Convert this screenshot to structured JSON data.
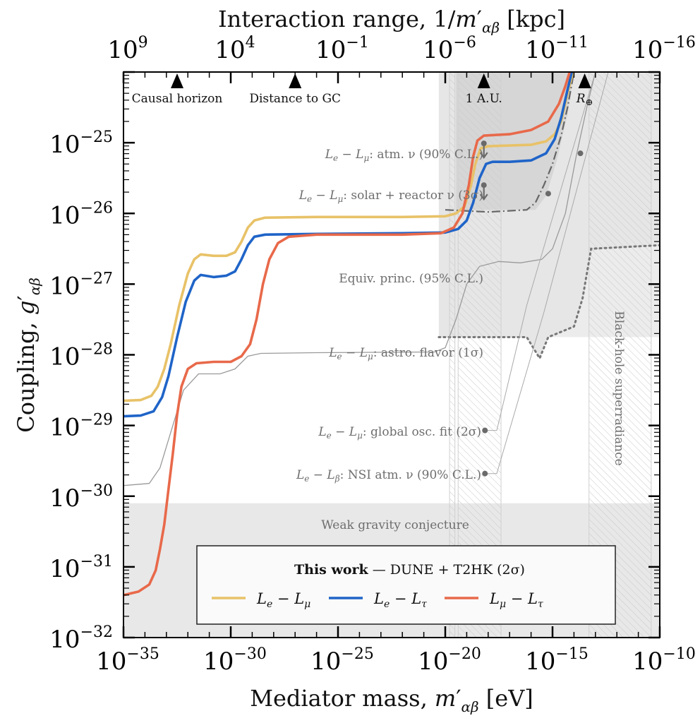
{
  "chart_data": {
    "type": "line",
    "title": "",
    "xlabel": "Mediator mass, m'_{αβ} [eV]",
    "xlabel_parts": {
      "main": "Mediator mass, ",
      "var": "m",
      "sub": "αβ",
      "unit": " [eV]"
    },
    "ylabel": "Coupling, g'_{αβ}",
    "ylabel_parts": {
      "main": "Coupling, ",
      "var": "g",
      "sub": "αβ"
    },
    "top_xlabel": "Interaction range, 1/m'_{αβ} [kpc]",
    "top_xlabel_parts": {
      "main": "Interaction range, 1/",
      "var": "m",
      "sub": "αβ",
      "unit": " [kpc]"
    },
    "xscale": "log",
    "yscale": "log",
    "xlim_log10": [
      -35,
      -10
    ],
    "ylim_log10": [
      -32,
      -24
    ],
    "x_ticks": [
      {
        "exp": "−35",
        "log": -35
      },
      {
        "exp": "−30",
        "log": -30
      },
      {
        "exp": "−25",
        "log": -25
      },
      {
        "exp": "−20",
        "log": -20
      },
      {
        "exp": "−15",
        "log": -15
      },
      {
        "exp": "−10",
        "log": -10
      }
    ],
    "y_ticks": [
      {
        "exp": "−25",
        "log": -25
      },
      {
        "exp": "−26",
        "log": -26
      },
      {
        "exp": "−27",
        "log": -27
      },
      {
        "exp": "−28",
        "log": -28
      },
      {
        "exp": "−29",
        "log": -29
      },
      {
        "exp": "−30",
        "log": -30
      },
      {
        "exp": "−31",
        "log": -31
      },
      {
        "exp": "−32",
        "log": -32
      }
    ],
    "top_x_ticks": [
      {
        "exp": "9",
        "mass_log": -35
      },
      {
        "exp": "4",
        "mass_log": -30
      },
      {
        "exp": "−1",
        "mass_log": -25
      },
      {
        "exp": "−6",
        "mass_log": -20
      },
      {
        "exp": "−11",
        "mass_log": -15
      },
      {
        "exp": "−16",
        "mass_log": -10
      }
    ],
    "distance_markers": [
      {
        "label": "Causal horizon",
        "mass_log": -32.5
      },
      {
        "label": "Distance to GC",
        "mass_log": -27.0
      },
      {
        "label": "1 A.U.",
        "mass_log": -18.2
      },
      {
        "label": "R⊕",
        "mass_log": -13.5
      }
    ],
    "series": [
      {
        "name": "Le − Lμ",
        "label_parts": {
          "a": "L",
          "asub": "e",
          "b": "L",
          "bsub": "μ"
        },
        "color": "#e8c268",
        "points_log10": [
          [
            -35,
            -28.65
          ],
          [
            -34.2,
            -28.64
          ],
          [
            -33.7,
            -28.58
          ],
          [
            -33.4,
            -28.45
          ],
          [
            -33.1,
            -28.2
          ],
          [
            -32.8,
            -27.85
          ],
          [
            -32.4,
            -27.3
          ],
          [
            -32.0,
            -26.85
          ],
          [
            -31.7,
            -26.65
          ],
          [
            -31.4,
            -26.58
          ],
          [
            -30.8,
            -26.6
          ],
          [
            -30.2,
            -26.6
          ],
          [
            -29.8,
            -26.55
          ],
          [
            -29.5,
            -26.4
          ],
          [
            -29.2,
            -26.2
          ],
          [
            -28.9,
            -26.1
          ],
          [
            -28.4,
            -26.06
          ],
          [
            -26,
            -26.05
          ],
          [
            -22,
            -26.05
          ],
          [
            -20,
            -26.04
          ],
          [
            -19.5,
            -26.0
          ],
          [
            -19.1,
            -25.9
          ],
          [
            -18.8,
            -25.6
          ],
          [
            -18.6,
            -25.3
          ],
          [
            -18.35,
            -25.08
          ],
          [
            -18.0,
            -25.05
          ],
          [
            -17,
            -25.04
          ],
          [
            -16,
            -25.03
          ],
          [
            -15.3,
            -24.98
          ],
          [
            -14.9,
            -24.88
          ],
          [
            -14.6,
            -24.7
          ],
          [
            -14.3,
            -24.3
          ],
          [
            -14.05,
            -24.0
          ]
        ]
      },
      {
        "name": "Le − Lτ",
        "label_parts": {
          "a": "L",
          "asub": "e",
          "b": "L",
          "bsub": "τ"
        },
        "color": "#1f64c8",
        "points_log10": [
          [
            -35,
            -28.87
          ],
          [
            -34.2,
            -28.86
          ],
          [
            -33.6,
            -28.8
          ],
          [
            -33.2,
            -28.6
          ],
          [
            -32.9,
            -28.3
          ],
          [
            -32.5,
            -27.75
          ],
          [
            -32.1,
            -27.25
          ],
          [
            -31.7,
            -26.95
          ],
          [
            -31.4,
            -26.87
          ],
          [
            -30.8,
            -26.9
          ],
          [
            -30.2,
            -26.88
          ],
          [
            -29.8,
            -26.82
          ],
          [
            -29.5,
            -26.65
          ],
          [
            -29.2,
            -26.45
          ],
          [
            -28.9,
            -26.33
          ],
          [
            -28.4,
            -26.3
          ],
          [
            -26,
            -26.29
          ],
          [
            -22,
            -26.28
          ],
          [
            -20,
            -26.27
          ],
          [
            -19.4,
            -26.22
          ],
          [
            -19.0,
            -26.1
          ],
          [
            -18.7,
            -25.85
          ],
          [
            -18.4,
            -25.5
          ],
          [
            -18.1,
            -25.3
          ],
          [
            -17.8,
            -25.27
          ],
          [
            -17,
            -25.27
          ],
          [
            -16,
            -25.25
          ],
          [
            -15.3,
            -25.15
          ],
          [
            -14.9,
            -24.95
          ],
          [
            -14.6,
            -24.65
          ],
          [
            -14.3,
            -24.25
          ],
          [
            -14.1,
            -24.0
          ]
        ]
      },
      {
        "name": "Lμ − Lτ",
        "label_parts": {
          "a": "L",
          "asub": "μ",
          "b": "L",
          "bsub": "τ"
        },
        "color": "#e8694a",
        "points_log10": [
          [
            -35,
            -31.4
          ],
          [
            -34.3,
            -31.35
          ],
          [
            -33.8,
            -31.25
          ],
          [
            -33.5,
            -31.05
          ],
          [
            -33.3,
            -30.75
          ],
          [
            -33.1,
            -30.4
          ],
          [
            -32.9,
            -29.9
          ],
          [
            -32.7,
            -29.4
          ],
          [
            -32.5,
            -28.85
          ],
          [
            -32.3,
            -28.45
          ],
          [
            -32.0,
            -28.2
          ],
          [
            -31.6,
            -28.12
          ],
          [
            -30.8,
            -28.1
          ],
          [
            -30.0,
            -28.1
          ],
          [
            -29.5,
            -28.02
          ],
          [
            -29.1,
            -27.85
          ],
          [
            -28.8,
            -27.5
          ],
          [
            -28.5,
            -27.0
          ],
          [
            -28.2,
            -26.65
          ],
          [
            -27.8,
            -26.42
          ],
          [
            -27.3,
            -26.33
          ],
          [
            -26,
            -26.3
          ],
          [
            -22,
            -26.3
          ],
          [
            -20.2,
            -26.28
          ],
          [
            -19.6,
            -26.2
          ],
          [
            -19.2,
            -26.0
          ],
          [
            -18.9,
            -25.6
          ],
          [
            -18.7,
            -25.2
          ],
          [
            -18.5,
            -24.97
          ],
          [
            -18.2,
            -24.9
          ],
          [
            -17,
            -24.88
          ],
          [
            -16,
            -24.82
          ],
          [
            -15.2,
            -24.7
          ],
          [
            -14.7,
            -24.45
          ],
          [
            -14.4,
            -24.2
          ],
          [
            -14.2,
            -24.0
          ]
        ]
      }
    ],
    "constraints": [
      {
        "name": "Le − Lμ: atm. ν (90% C.L.)",
        "label_parts": {
          "a": "L",
          "asub": "e",
          "b": "L",
          "bsub": "μ",
          "rest": ": atm. ν (90% C.L.)"
        },
        "type": "upper-limit-marker",
        "point_log10": [
          -18.2,
          -25.08
        ]
      },
      {
        "name": "Le − Lμ: solar + reactor ν (3σ)",
        "label_parts": {
          "a": "L",
          "asub": "e",
          "b": "L",
          "bsub": "μ",
          "rest": ": solar + reactor ν (3σ)"
        },
        "type": "upper-limit-marker",
        "point_log10": [
          -18.2,
          -25.65
        ]
      },
      {
        "name": "Equiv. princ. (95% C.L.)",
        "type": "dotted-boundary"
      },
      {
        "name": "Le − Lμ: astro. flavor (1σ)",
        "label_parts": {
          "a": "L",
          "asub": "e",
          "b": "L",
          "bsub": "μ",
          "rest": ": astro. flavor (1σ)"
        },
        "type": "thin-line"
      },
      {
        "name": "Le − Lμ: global osc. fit (2σ)",
        "label_parts": {
          "a": "L",
          "asub": "e",
          "b": "L",
          "bsub": "μ",
          "rest": ": global osc. fit (2σ)"
        },
        "type": "point-with-leader"
      },
      {
        "name": "Le − Lβ: NSI atm. ν (90% C.L.)",
        "label_parts": {
          "a": "L",
          "asub": "e",
          "b": "L",
          "bsub": "β",
          "rest": ": NSI atm. ν (90% C.L.)"
        },
        "type": "point-with-leader"
      },
      {
        "name": "Weak gravity conjecture",
        "type": "shaded-band",
        "g_log10_max": -30.1
      },
      {
        "name": "Black-hole superradiance",
        "type": "hatched-band",
        "mass_log10_range": [
          -13.3,
          -10.4
        ]
      }
    ],
    "legend": {
      "title_bold": "This work",
      "title_rest": " — DUNE + T2HK (2σ)",
      "placement": "lower-center"
    },
    "grid": false
  }
}
